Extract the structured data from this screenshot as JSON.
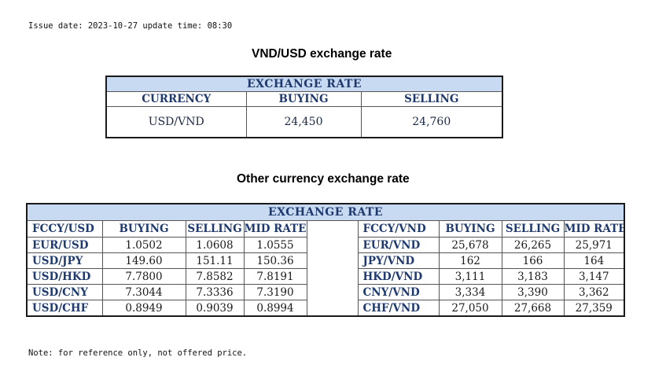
{
  "issue_line": "Issue date: 2023-10-27 update time: 08:30",
  "note": "Note: for reference only, not offered price.",
  "vnd_section": {
    "heading": "VND/USD exchange rate",
    "table_title": "EXCHANGE RATE",
    "headers": [
      "CURRENCY",
      "BUYING",
      "SELLING"
    ],
    "row": {
      "currency": "USD/VND",
      "buying": "24,450",
      "selling": "24,760"
    }
  },
  "other_section": {
    "heading": "Other currency exchange rate",
    "table_title": "EXCHANGE  RATE",
    "left_headers": [
      "FCCY/USD",
      "BUYING",
      "SELLING",
      "MID RATE"
    ],
    "right_headers": [
      "FCCY/VND",
      "BUYING",
      "SELLING",
      "MID RATE"
    ],
    "rows": [
      {
        "l_pair": "EUR/USD",
        "l_buy": "1.0502",
        "l_sell": "1.0608",
        "l_mid": "1.0555",
        "r_pair": "EUR/VND",
        "r_buy": "25,678",
        "r_sell": "26,265",
        "r_mid": "25,971"
      },
      {
        "l_pair": "USD/JPY",
        "l_buy": "149.60",
        "l_sell": "151.11",
        "l_mid": "150.36",
        "r_pair": "JPY/VND",
        "r_buy": "162",
        "r_sell": "166",
        "r_mid": "164"
      },
      {
        "l_pair": "USD/HKD",
        "l_buy": "7.7800",
        "l_sell": "7.8582",
        "l_mid": "7.8191",
        "r_pair": "HKD/VND",
        "r_buy": "3,111",
        "r_sell": "3,183",
        "r_mid": "3,147"
      },
      {
        "l_pair": "USD/CNY",
        "l_buy": "7.3044",
        "l_sell": "7.3336",
        "l_mid": "7.3190",
        "r_pair": "CNY/VND",
        "r_buy": "3,334",
        "r_sell": "3,390",
        "r_mid": "3,362"
      },
      {
        "l_pair": "USD/CHF",
        "l_buy": "0.8949",
        "l_sell": "0.9039",
        "l_mid": "0.8994",
        "r_pair": "CHF/VND",
        "r_buy": "27,050",
        "r_sell": "27,668",
        "r_mid": "27,359"
      }
    ]
  }
}
